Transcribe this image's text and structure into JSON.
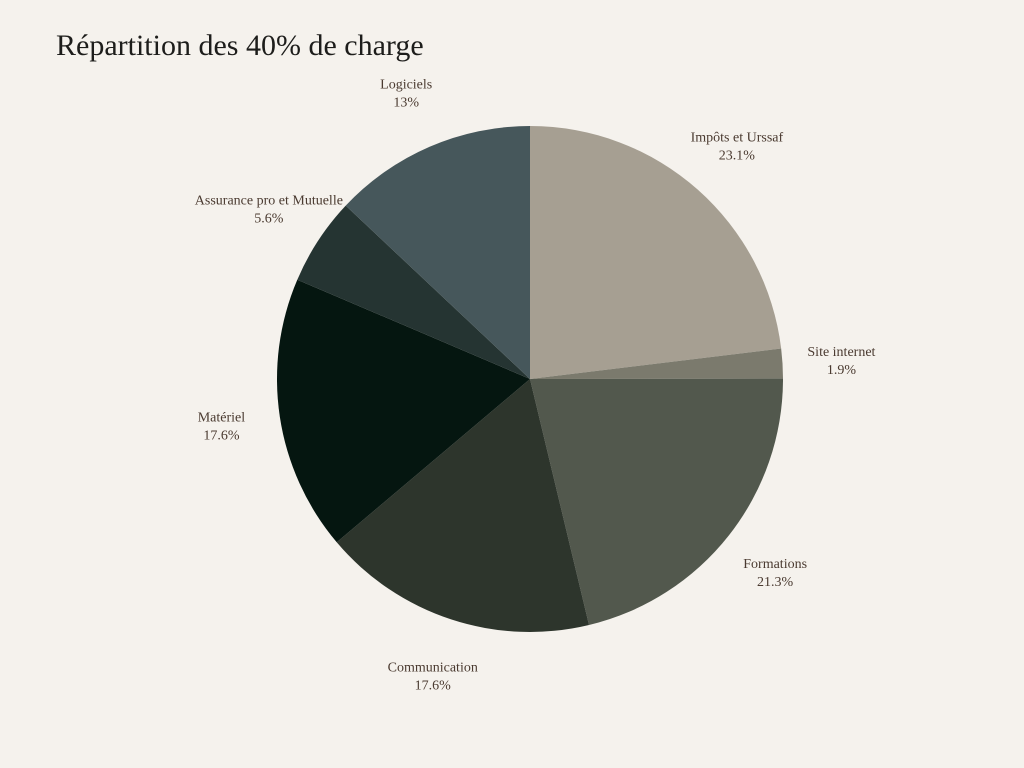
{
  "chart_data": {
    "type": "pie",
    "title": "Répartition des 40% de charge",
    "categories": [
      "Impôts et Urssaf",
      "Site internet",
      "Formations",
      "Communication",
      "Matériel",
      "Assurance pro et Mutuelle",
      "Logiciels"
    ],
    "values": [
      23.1,
      1.9,
      21.3,
      17.6,
      17.6,
      5.6,
      13
    ],
    "value_labels": [
      "23.1%",
      "1.9%",
      "21.3%",
      "17.6%",
      "17.6%",
      "5.6%",
      "13%"
    ],
    "colors": [
      "#a69f92",
      "#7b7a6d",
      "#52584d",
      "#2d352c",
      "#051610",
      "#253432",
      "#46575b"
    ]
  }
}
